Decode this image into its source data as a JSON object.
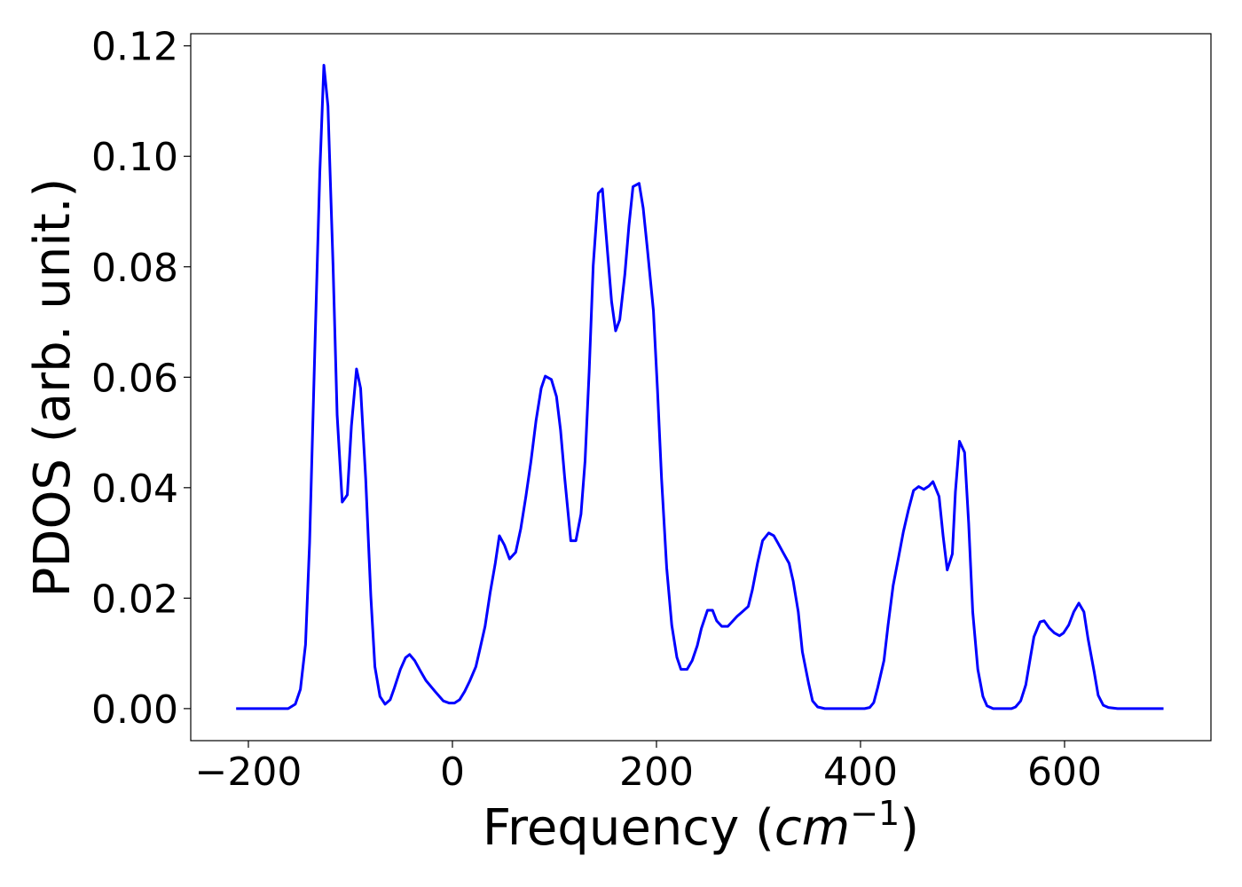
{
  "chart_data": {
    "type": "line",
    "xlabel": {
      "text": "Frequency (",
      "unit": "cm",
      "exponent": "−1",
      "close": ")"
    },
    "ylabel": "PDOS (arb. unit.)",
    "xlim": [
      -256.5,
      743.5
    ],
    "ylim": [
      -0.0058,
      0.1222
    ],
    "xticks": [
      {
        "value": -200,
        "label": "−200"
      },
      0,
      200,
      400,
      600
    ],
    "yticks": [
      {
        "value": 0,
        "label": "0.00"
      },
      0.02,
      0.04,
      0.06,
      0.08,
      {
        "value": 0.1,
        "label": "0.10"
      },
      0.12
    ],
    "grid": false,
    "series": [
      {
        "color": "#0000ff",
        "x": [
          -212,
          -161,
          -154,
          -149,
          -144,
          -140,
          -135,
          -130,
          -126,
          -122,
          -117,
          -113,
          -108,
          -103,
          -99,
          -94,
          -90,
          -85,
          -80,
          -76,
          -71,
          -66,
          -61,
          -57,
          -51,
          -46,
          -42,
          -37,
          -31,
          -26,
          -17,
          -9,
          -3,
          2,
          7,
          12,
          17,
          23,
          27,
          32,
          37,
          42,
          46,
          51,
          56,
          62,
          67,
          72,
          77,
          82,
          87,
          91,
          97,
          102,
          106,
          110,
          116,
          121,
          126,
          130,
          134,
          138,
          143,
          147,
          151,
          156,
          160,
          164,
          169,
          173,
          177,
          183,
          187,
          191,
          197,
          201,
          205,
          210,
          215,
          220,
          224,
          230,
          235,
          240,
          244,
          250,
          255,
          259,
          264,
          270,
          275,
          279,
          284,
          290,
          294,
          299,
          304,
          310,
          315,
          319,
          324,
          330,
          334,
          339,
          343,
          349,
          353,
          358,
          365,
          404,
          409,
          413,
          417,
          423,
          427,
          432,
          437,
          442,
          447,
          452,
          457,
          462,
          467,
          471,
          477,
          481,
          485,
          490,
          493,
          497,
          502,
          506,
          510,
          515,
          520,
          524,
          530,
          548,
          552,
          557,
          562,
          566,
          570,
          576,
          580,
          585,
          590,
          595,
          599,
          604,
          609,
          614,
          619,
          623,
          629,
          633,
          638,
          643,
          652,
          697
        ],
        "values": [
          0,
          0,
          0.0008,
          0.0035,
          0.0116,
          0.03,
          0.0641,
          0.097,
          0.1165,
          0.1091,
          0.0802,
          0.0532,
          0.0374,
          0.0387,
          0.0512,
          0.0615,
          0.058,
          0.0416,
          0.0204,
          0.0076,
          0.0022,
          0.0008,
          0.0016,
          0.0037,
          0.0071,
          0.0092,
          0.0098,
          0.0087,
          0.0067,
          0.0051,
          0.0031,
          0.0014,
          0.001,
          0.001,
          0.0016,
          0.0031,
          0.005,
          0.0076,
          0.0108,
          0.0149,
          0.021,
          0.0263,
          0.0313,
          0.0296,
          0.0271,
          0.0283,
          0.0326,
          0.0384,
          0.0448,
          0.0522,
          0.058,
          0.0602,
          0.0596,
          0.0565,
          0.0504,
          0.0419,
          0.0304,
          0.0304,
          0.0352,
          0.0448,
          0.0609,
          0.0802,
          0.0933,
          0.0941,
          0.085,
          0.0737,
          0.0684,
          0.0704,
          0.0786,
          0.0874,
          0.0945,
          0.0951,
          0.0906,
          0.0834,
          0.0721,
          0.0577,
          0.0416,
          0.0255,
          0.0151,
          0.0093,
          0.0071,
          0.0071,
          0.0087,
          0.0114,
          0.0145,
          0.0178,
          0.0178,
          0.0159,
          0.0149,
          0.0149,
          0.0159,
          0.0167,
          0.0175,
          0.0185,
          0.0215,
          0.0263,
          0.0304,
          0.0318,
          0.0313,
          0.03,
          0.0283,
          0.0263,
          0.0231,
          0.0175,
          0.0103,
          0.0047,
          0.0014,
          0.0003,
          0,
          0,
          0.0002,
          0.0011,
          0.0039,
          0.0087,
          0.0151,
          0.0223,
          0.0271,
          0.032,
          0.036,
          0.0395,
          0.0402,
          0.0397,
          0.0403,
          0.0411,
          0.0384,
          0.0312,
          0.0251,
          0.028,
          0.0392,
          0.0484,
          0.0464,
          0.0336,
          0.0175,
          0.0071,
          0.0022,
          0.0005,
          0,
          0,
          0.0003,
          0.0014,
          0.0043,
          0.0087,
          0.013,
          0.0157,
          0.0159,
          0.0146,
          0.0137,
          0.0132,
          0.0137,
          0.0151,
          0.0175,
          0.0191,
          0.0175,
          0.0127,
          0.0067,
          0.0024,
          0.0006,
          0.0002,
          0,
          0
        ]
      }
    ]
  }
}
